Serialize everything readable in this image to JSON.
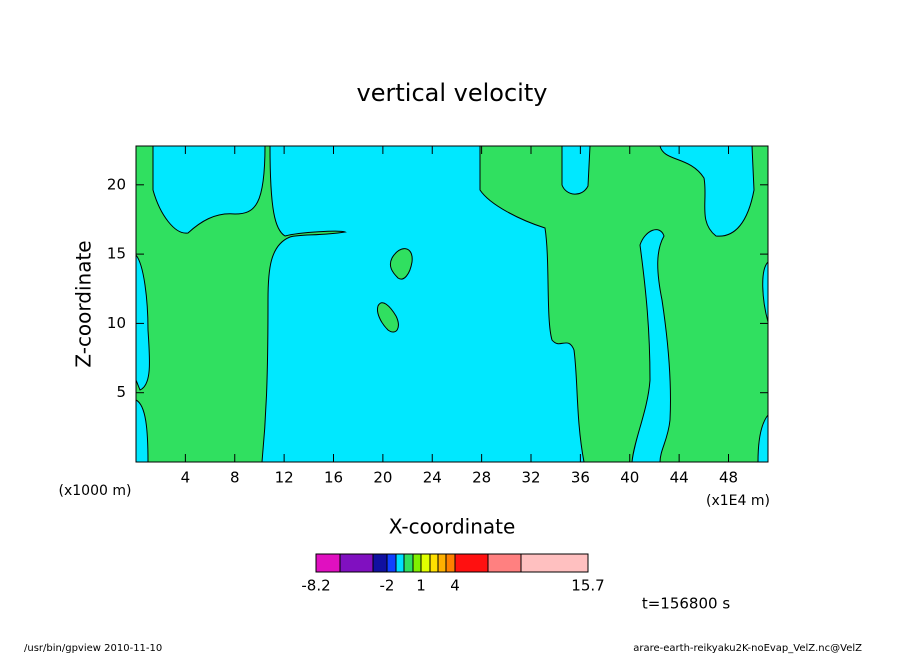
{
  "chart_data": {
    "type": "contour",
    "title": "vertical velocity",
    "x_label": "X-coordinate",
    "y_label": "Z-coordinate",
    "x_unit_left": "(x1000 m)",
    "x_unit_right": "(x1E4 m)",
    "xlim": [
      0,
      51.2
    ],
    "xticks": [
      4,
      8,
      12,
      16,
      20,
      24,
      28,
      32,
      36,
      40,
      44,
      48
    ],
    "ylim": [
      0,
      22.8
    ],
    "yticks": [
      5,
      10,
      15,
      20
    ],
    "colorbar": {
      "colors": [
        "#e010c0",
        "#8010c0",
        "#1010a0",
        "#1040ff",
        "#00e0ff",
        "#30e060",
        "#80f000",
        "#e0ff00",
        "#ffe000",
        "#ffb000",
        "#ff8000",
        "#ff1010",
        "#ff8080",
        "#ffc0c0"
      ],
      "ticks": [
        -8.2,
        -2,
        1,
        4,
        15.7
      ]
    },
    "time_label": "t=156800 s",
    "footer_left": "/usr/bin/gpview   2010-11-10",
    "footer_right": "arare-earth-reikyaku2K-noEvap_VelZ.nc@VelZ"
  }
}
